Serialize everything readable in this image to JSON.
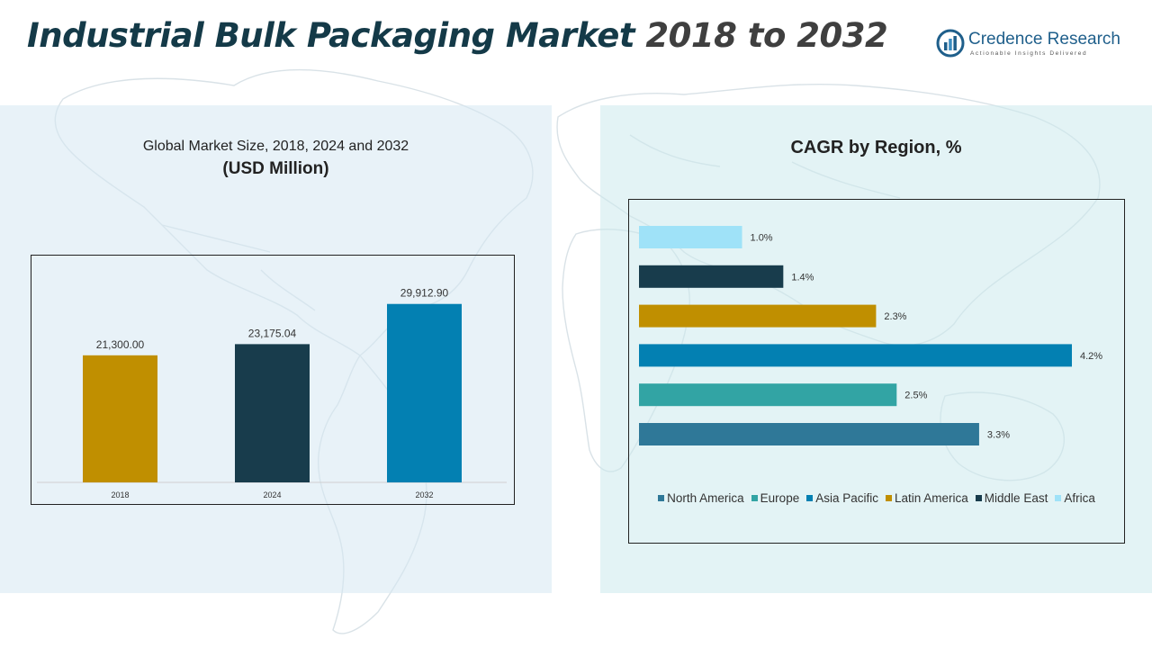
{
  "header": {
    "title_main": "Industrial Bulk Packaging Market",
    "title_years": "2018 to 2032"
  },
  "logo": {
    "name": "Credence Research",
    "tagline": "Actionable Insights Delivered"
  },
  "chart_data": [
    {
      "type": "bar",
      "title": "Global Market Size, 2018, 2024 and 2032",
      "subtitle": "(USD Million)",
      "categories": [
        "2018",
        "2024",
        "2032"
      ],
      "values": [
        21300.0,
        23175.04,
        29912.9
      ],
      "value_labels": [
        "21,300.00",
        "23,175.04",
        "29,912.90"
      ],
      "colors": [
        "#c08f00",
        "#183c4c",
        "#0380b2"
      ],
      "ylim": [
        0,
        35000
      ],
      "grid": false
    },
    {
      "type": "bar",
      "orientation": "horizontal",
      "title": "CAGR by Region, %",
      "categories": [
        "Africa",
        "Middle East",
        "Latin America",
        "Asia Pacific",
        "Europe",
        "North America"
      ],
      "values": [
        1.0,
        1.4,
        2.3,
        4.2,
        2.5,
        3.3
      ],
      "value_labels": [
        "1.0%",
        "1.4%",
        "2.3%",
        "4.2%",
        "2.5%",
        "3.3%"
      ],
      "colors": [
        "#9fe2f8",
        "#183c4c",
        "#c08f00",
        "#0380b2",
        "#32a4a4",
        "#2f7898"
      ],
      "legend_order": [
        "North America",
        "Europe",
        "Asia Pacific",
        "Latin America",
        "Middle East",
        "Africa"
      ],
      "xlim": [
        0,
        4.2
      ],
      "legend": "bottom",
      "grid": false
    }
  ]
}
